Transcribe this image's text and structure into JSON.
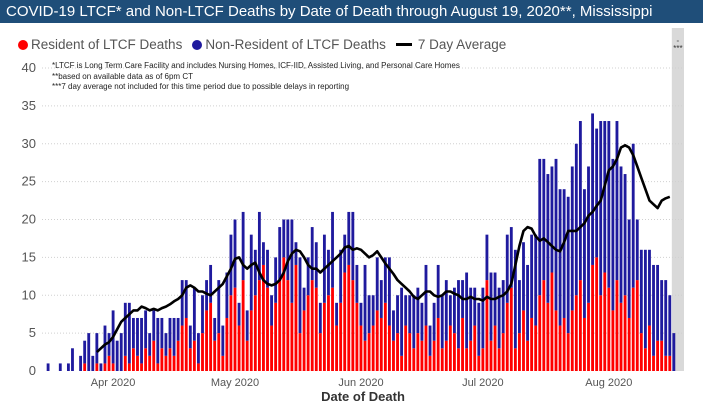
{
  "chart_data": {
    "type": "bar",
    "title": "COVID-19 LTCF* and Non-LTCF Deaths by Date of Death through August 19, 2020**, Mississippi",
    "xlabel": "Date of Death",
    "ylabel": "",
    "ylim": [
      0,
      40
    ],
    "yticks": [
      "0",
      "5",
      "10",
      "15",
      "20",
      "25",
      "30",
      "35",
      "40"
    ],
    "stacked": true,
    "grid": true,
    "legend_position": "top-left",
    "x_tick_labels": [
      {
        "label": "Apr 2020",
        "date": "2020-04-01"
      },
      {
        "label": "May 2020",
        "date": "2020-05-01"
      },
      {
        "label": "Jun 2020",
        "date": "2020-06-01"
      },
      {
        "label": "Jul 2020",
        "date": "2020-07-01"
      },
      {
        "label": "Aug 2020",
        "date": "2020-08-01"
      }
    ],
    "x_start": "2020-03-15",
    "x_end": "2020-08-19",
    "series": [
      {
        "name": "Resident of LTCF Deaths",
        "color": "#ff0000",
        "values": [
          0,
          0,
          0,
          0,
          0,
          0,
          0,
          0,
          0,
          0,
          1,
          0,
          0,
          1,
          0,
          1,
          2,
          1,
          0,
          0,
          2,
          1,
          3,
          2,
          1,
          3,
          2,
          4,
          1,
          3,
          2,
          3,
          2,
          4,
          6,
          7,
          3,
          4,
          1,
          5,
          8,
          9,
          4,
          5,
          2,
          7,
          10,
          11,
          6,
          12,
          4,
          8,
          10,
          12,
          14,
          11,
          6,
          9,
          12,
          15,
          12,
          9,
          14,
          5,
          8,
          10,
          12,
          11,
          5,
          9,
          10,
          11,
          6,
          9,
          13,
          14,
          12,
          9,
          6,
          4,
          5,
          6,
          8,
          7,
          9,
          6,
          4,
          5,
          2,
          6,
          5,
          3,
          5,
          4,
          6,
          2,
          4,
          7,
          3,
          4,
          6,
          5,
          3,
          7,
          3,
          4,
          6,
          2,
          3,
          12,
          4,
          6,
          3,
          5,
          9,
          11,
          3,
          5,
          8,
          4,
          7,
          6,
          10,
          12,
          9,
          13,
          8,
          6,
          7,
          5,
          8,
          10,
          12,
          7,
          9,
          14,
          15,
          10,
          13,
          11,
          8,
          12,
          9,
          10,
          7,
          11,
          12,
          5,
          3,
          6,
          2,
          4,
          4,
          2,
          2,
          0
        ]
      },
      {
        "name": "Non-Resident of LTCF Deaths",
        "color": "#1f1a9e",
        "values": [
          0,
          1,
          0,
          0,
          1,
          0,
          1,
          3,
          0,
          2,
          3,
          5,
          2,
          4,
          1,
          5,
          3,
          7,
          4,
          5,
          7,
          8,
          4,
          5,
          6,
          5,
          3,
          4,
          6,
          4,
          3,
          4,
          5,
          3,
          6,
          5,
          3,
          7,
          4,
          5,
          4,
          5,
          3,
          7,
          4,
          6,
          8,
          9,
          3,
          9,
          4,
          10,
          6,
          9,
          3,
          5,
          4,
          6,
          7,
          5,
          8,
          11,
          3,
          10,
          3,
          5,
          7,
          6,
          4,
          9,
          6,
          10,
          3,
          7,
          5,
          7,
          9,
          5,
          3,
          10,
          5,
          4,
          7,
          5,
          6,
          9,
          4,
          5,
          9,
          4,
          5,
          7,
          6,
          5,
          8,
          4,
          5,
          7,
          7,
          8,
          4,
          6,
          9,
          5,
          10,
          7,
          5,
          7,
          8,
          6,
          9,
          7,
          8,
          7,
          9,
          8,
          13,
          7,
          9,
          10,
          11,
          12,
          18,
          16,
          17,
          14,
          20,
          18,
          17,
          18,
          19,
          20,
          21,
          17,
          18,
          20,
          17,
          23,
          20,
          22,
          20,
          21,
          18,
          16,
          13,
          19,
          8,
          11,
          13,
          10,
          12,
          10,
          8,
          10,
          8,
          5
        ]
      },
      {
        "name": "7 Day Average",
        "color": "#000000",
        "type": "line",
        "values": [
          null,
          null,
          null,
          null,
          null,
          null,
          null,
          null,
          null,
          null,
          null,
          null,
          null,
          2.5,
          3.0,
          3.5,
          3.8,
          4.5,
          5.5,
          6.5,
          7.0,
          7.5,
          8.0,
          8.0,
          8.5,
          8.3,
          8.0,
          8.2,
          8.0,
          8.3,
          8.5,
          8.8,
          9.2,
          9.5,
          10.0,
          11.0,
          11.3,
          11.0,
          10.5,
          10.5,
          10.2,
          10.0,
          10.5,
          11.0,
          11.5,
          12.5,
          13.5,
          14.8,
          15.0,
          14.0,
          13.5,
          14.0,
          14.3,
          13.0,
          12.0,
          11.5,
          11.3,
          11.5,
          12.0,
          13.0,
          14.5,
          15.5,
          16.0,
          15.8,
          15.0,
          14.0,
          13.5,
          13.5,
          13.0,
          13.5,
          14.0,
          14.5,
          15.0,
          15.5,
          16.3,
          16.5,
          16.0,
          16.2,
          16.0,
          15.5,
          15.0,
          15.3,
          15.8,
          15.0,
          14.2,
          13.5,
          12.8,
          12.0,
          11.5,
          11.0,
          10.5,
          9.8,
          9.5,
          10.0,
          10.5,
          10.5,
          10.0,
          9.8,
          10.0,
          10.5,
          10.5,
          10.2,
          10.0,
          9.5,
          9.5,
          9.8,
          9.5,
          9.5,
          9.3,
          9.8,
          9.5,
          9.5,
          9.8,
          10.0,
          10.5,
          11.5,
          14.0,
          16.5,
          18.5,
          19.0,
          18.8,
          17.8,
          17.2,
          17.5,
          17.0,
          16.5,
          16.0,
          15.8,
          17.0,
          18.5,
          18.5,
          18.5,
          19.0,
          19.5,
          20.5,
          21.0,
          21.8,
          22.5,
          24.5,
          26.5,
          27.0,
          28.0,
          29.5,
          29.8,
          29.5,
          28.5,
          27.0,
          25.5,
          24.0,
          22.5,
          22.0,
          21.5,
          22.5,
          22.8,
          23.0,
          null,
          null,
          null,
          null,
          null,
          null,
          null
        ]
      }
    ],
    "notes": [
      "*LTCF is Long Term Care Facility and includes Nursing Homes, ICF-IID, Assisted Living, and Personal Care Homes",
      "**based on available data as of 6pm CT",
      "***7 day average not included for this time period due to possible delays in reporting"
    ],
    "shaded_region_label": "***"
  }
}
